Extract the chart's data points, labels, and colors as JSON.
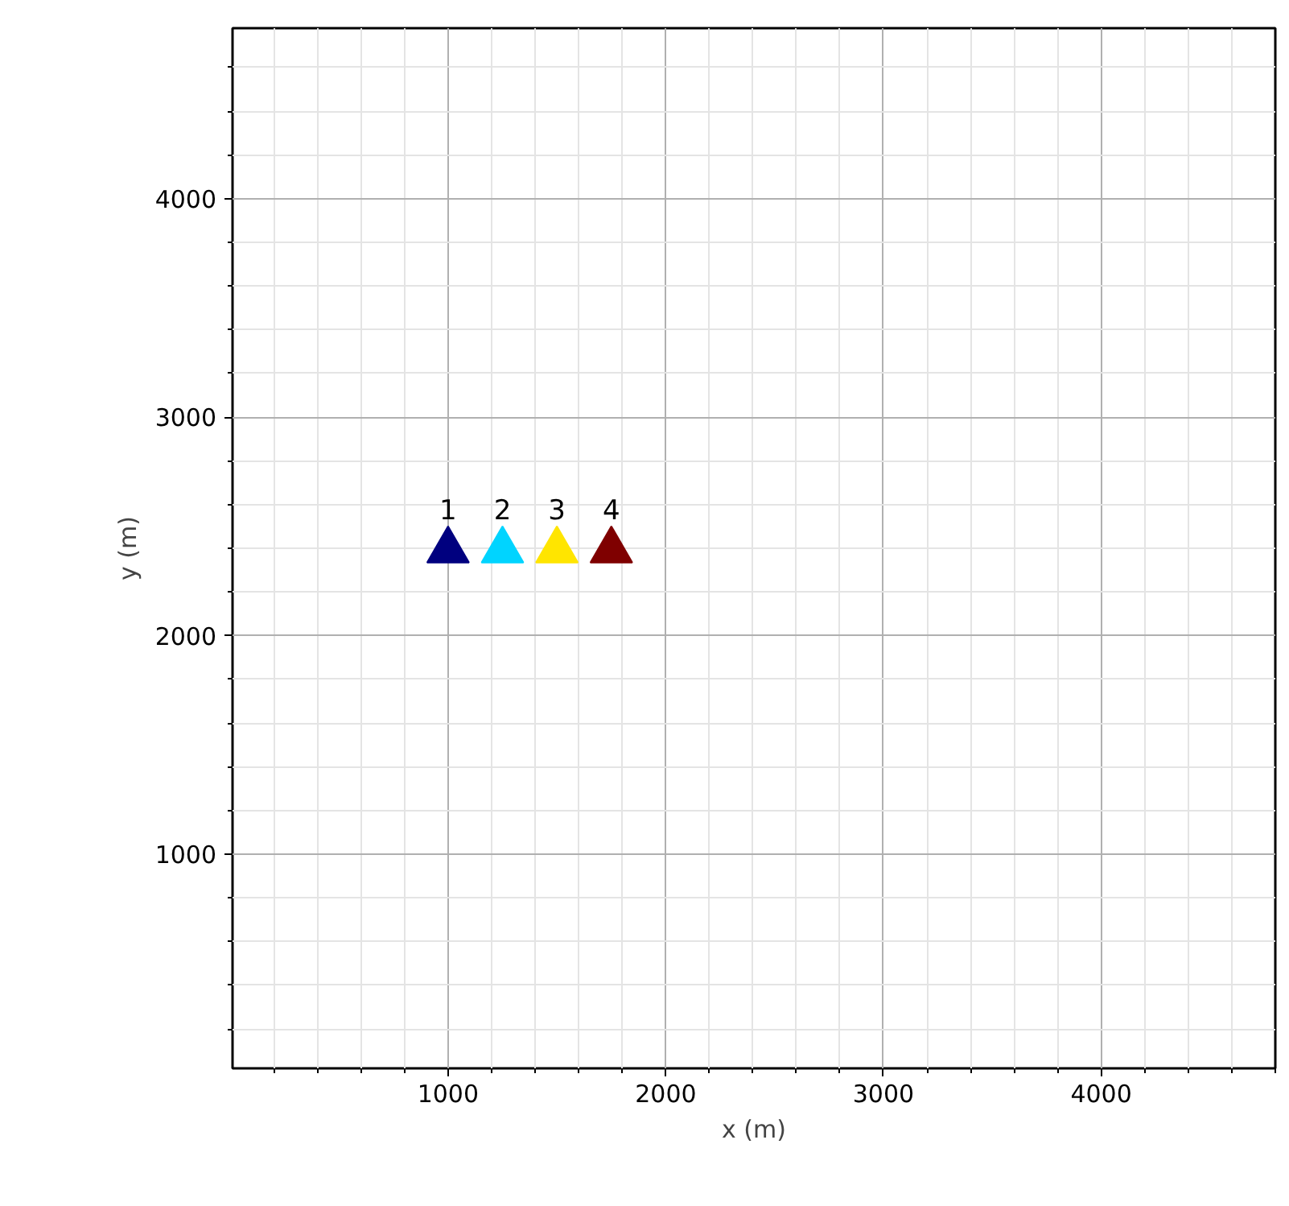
{
  "chart_data": {
    "type": "scatter",
    "xlabel": "x (m)",
    "ylabel": "y (m)",
    "xlim": [
      10,
      4800
    ],
    "ylim": [
      20,
      4780
    ],
    "xticks": [
      1000,
      2000,
      3000,
      4000
    ],
    "yticks": [
      1000,
      2000,
      3000,
      4000
    ],
    "grid": true,
    "marker": "triangle",
    "series": [
      {
        "name": "1",
        "color": "#00007f",
        "x": [
          1000
        ],
        "values": [
          2390
        ]
      },
      {
        "name": "2",
        "color": "#00d4ff",
        "x": [
          1250
        ],
        "values": [
          2390
        ]
      },
      {
        "name": "3",
        "color": "#ffe500",
        "x": [
          1500
        ],
        "values": [
          2390
        ]
      },
      {
        "name": "4",
        "color": "#7f0000",
        "x": [
          1750
        ],
        "values": [
          2390
        ]
      }
    ]
  }
}
